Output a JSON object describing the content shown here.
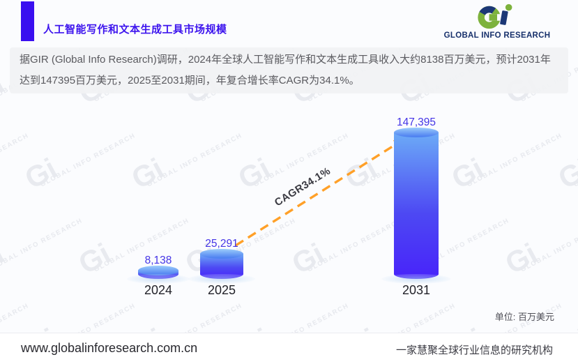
{
  "header": {
    "title": "人工智能写作和文本生成工具市场规模",
    "accent_color": "#3a10f0",
    "logo_gi": "Gi",
    "logo_text": "GLOBAL INFO RESEARCH",
    "logo_colors": {
      "green": "#7db23c",
      "navy": "#1c3876"
    }
  },
  "summary": {
    "text": "据GIR (Global Info Research)调研，2024年全球人工智能写作和文本生成工具收入大约8138百万美元，预计2031年达到147395百万美元，2025至2031期间，年复合增长率CAGR为34.1%。"
  },
  "chart_data": {
    "type": "bar",
    "title": "人工智能写作和文本生成工具市场规模",
    "categories": [
      "2024",
      "2025",
      "2031"
    ],
    "values": [
      8138,
      25291,
      147395
    ],
    "value_labels": [
      "8,138",
      "25,291",
      "147,395"
    ],
    "annotation": "CAGR34.1%",
    "cagr_percent": 34.1,
    "unit_label": "单位: 百万美元",
    "ylabel": "百万美元",
    "xlabel": "",
    "ylim": [
      0,
      147395
    ],
    "grid": false,
    "legend": "none",
    "bar_gradient_top": "#6cabf7",
    "bar_gradient_bottom": "#4823fa",
    "value_label_color": "#4434e6",
    "arrow_color": "#ffa028"
  },
  "watermark": {
    "gi": "Gi",
    "text": "GLOBAL INFO RESEARCH"
  },
  "footer": {
    "website": "www.globalinforesearch.com.cn",
    "tagline": "一家慧聚全球行业信息的研究机构"
  }
}
